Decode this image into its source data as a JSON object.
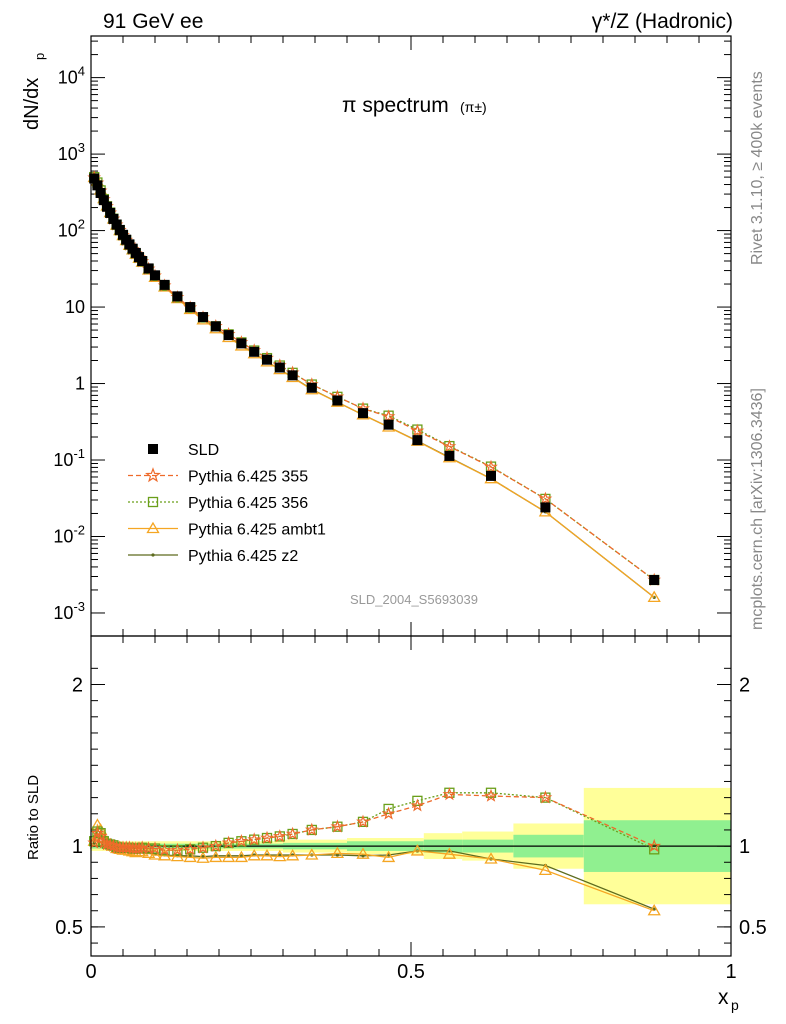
{
  "header": {
    "left_title": "91 GeV ee",
    "right_title": "γ*/Z (Hadronic)"
  },
  "side_text": {
    "rivet": "Rivet 3.1.10, ≥ 400k events",
    "mcplots": "mcplots.cern.ch [arXiv:1306.3436]"
  },
  "chart_data": [
    {
      "type": "line",
      "title": "π spectrum",
      "title_suffix": "(π±)",
      "ylabel": "dN/dx",
      "ylabel_sub": "p",
      "yscale": "log",
      "ylim": [
        0.0005,
        35000
      ],
      "xlim": [
        0,
        1
      ],
      "yticks": [
        "10^-3",
        "10^-2",
        "10^-1",
        "1",
        "10",
        "10^2",
        "10^3",
        "10^4"
      ],
      "watermark": "SLD_2004_S5693039",
      "legend_position": "bottom-left",
      "x": [
        0.005,
        0.01,
        0.015,
        0.02,
        0.025,
        0.03,
        0.035,
        0.04,
        0.045,
        0.05,
        0.055,
        0.06,
        0.065,
        0.07,
        0.075,
        0.08,
        0.09,
        0.1,
        0.115,
        0.135,
        0.155,
        0.175,
        0.195,
        0.215,
        0.235,
        0.255,
        0.275,
        0.295,
        0.315,
        0.345,
        0.385,
        0.425,
        0.465,
        0.51,
        0.56,
        0.625,
        0.71,
        0.88
      ],
      "series": [
        {
          "name": "SLD",
          "color": "#000000",
          "values": [
            480,
            390,
            310,
            250,
            205,
            170,
            142,
            120,
            102,
            88,
            76,
            66,
            58,
            51,
            45,
            40,
            32,
            26,
            19.5,
            13.8,
            10.0,
            7.4,
            5.6,
            4.3,
            3.35,
            2.6,
            2.05,
            1.62,
            1.28,
            0.88,
            0.6,
            0.41,
            0.29,
            0.182,
            0.113,
            0.062,
            0.024,
            0.0027
          ]
        },
        {
          "name": "Pythia 6.425 355",
          "color": "#ee6a2a",
          "values": [
            490,
            420,
            330,
            255,
            207,
            171,
            142,
            119,
            101,
            87,
            75,
            65,
            57,
            50,
            44.4,
            39.5,
            31.5,
            25.6,
            19.0,
            13.4,
            9.8,
            7.3,
            5.6,
            4.4,
            3.45,
            2.7,
            2.15,
            1.72,
            1.38,
            0.97,
            0.67,
            0.47,
            0.37,
            0.24,
            0.15,
            0.081,
            0.031,
            0.0027
          ]
        },
        {
          "name": "Pythia 6.425 356",
          "color": "#6a9f1a",
          "values": [
            500,
            425,
            335,
            258,
            208,
            172,
            143,
            119,
            101,
            87,
            75,
            65,
            57,
            50,
            44.4,
            39.5,
            31.5,
            25.6,
            19.0,
            13.4,
            9.8,
            7.3,
            5.6,
            4.4,
            3.45,
            2.7,
            2.15,
            1.72,
            1.38,
            0.97,
            0.67,
            0.47,
            0.38,
            0.25,
            0.152,
            0.082,
            0.031,
            0.0027
          ]
        },
        {
          "name": "Pythia 6.425 ambt1",
          "color": "#f5a623",
          "values": [
            495,
            440,
            340,
            262,
            210,
            172,
            142,
            118,
            100,
            86,
            74,
            64,
            56,
            49,
            43.5,
            38.5,
            30.5,
            24.5,
            18.3,
            12.9,
            9.3,
            6.8,
            5.2,
            4.0,
            3.1,
            2.45,
            1.92,
            1.52,
            1.2,
            0.83,
            0.57,
            0.39,
            0.27,
            0.176,
            0.107,
            0.057,
            0.021,
            0.0016
          ]
        },
        {
          "name": "Pythia 6.425 z2",
          "color": "#5d6b1e",
          "values": [
            490,
            430,
            335,
            259,
            209,
            171,
            141,
            118,
            100,
            86,
            74,
            64,
            56,
            49,
            43.6,
            38.6,
            30.6,
            24.7,
            18.4,
            13.0,
            9.4,
            6.9,
            5.3,
            4.05,
            3.15,
            2.46,
            1.93,
            1.53,
            1.21,
            0.84,
            0.57,
            0.39,
            0.27,
            0.177,
            0.108,
            0.057,
            0.021,
            0.0016
          ]
        }
      ]
    },
    {
      "type": "line",
      "ylabel": "Ratio to SLD",
      "xlabel": "x",
      "xlabel_sub": "p",
      "xlim": [
        0,
        1
      ],
      "ylim": [
        0.32,
        2.3
      ],
      "xticks": [
        "0",
        "0.5",
        "1"
      ],
      "yticks": [
        "0.5",
        "1",
        "2"
      ],
      "reference_line": 1,
      "uncertainty_bands": [
        {
          "x0": 0.0,
          "x1": 0.1,
          "inner": 0.015,
          "outer": 0.03
        },
        {
          "x0": 0.1,
          "x1": 0.3,
          "inner": 0.015,
          "outer": 0.03
        },
        {
          "x0": 0.3,
          "x1": 0.4,
          "inner": 0.02,
          "outer": 0.04
        },
        {
          "x0": 0.4,
          "x1": 0.52,
          "inner": 0.03,
          "outer": 0.05
        },
        {
          "x0": 0.52,
          "x1": 0.58,
          "inner": 0.04,
          "outer": 0.08
        },
        {
          "x0": 0.58,
          "x1": 0.66,
          "inner": 0.04,
          "outer": 0.09
        },
        {
          "x0": 0.66,
          "x1": 0.77,
          "inner": 0.07,
          "outer": 0.14
        },
        {
          "x0": 0.77,
          "x1": 1.0,
          "inner": 0.16,
          "outer": 0.36
        }
      ],
      "x": [
        0.005,
        0.01,
        0.015,
        0.02,
        0.025,
        0.03,
        0.035,
        0.04,
        0.045,
        0.05,
        0.055,
        0.06,
        0.065,
        0.07,
        0.075,
        0.08,
        0.09,
        0.1,
        0.115,
        0.135,
        0.155,
        0.175,
        0.195,
        0.215,
        0.235,
        0.255,
        0.275,
        0.295,
        0.315,
        0.345,
        0.385,
        0.425,
        0.465,
        0.51,
        0.56,
        0.625,
        0.71,
        0.88
      ],
      "series": [
        {
          "name": "Pythia 6.425 355",
          "color": "#ee6a2a",
          "values": [
            1.02,
            1.08,
            1.06,
            1.02,
            1.01,
            1.005,
            1.0,
            0.99,
            0.99,
            0.99,
            0.99,
            0.99,
            0.985,
            0.985,
            0.985,
            0.99,
            0.985,
            0.985,
            0.975,
            0.975,
            0.98,
            0.99,
            1.0,
            1.02,
            1.03,
            1.04,
            1.05,
            1.06,
            1.075,
            1.1,
            1.12,
            1.15,
            1.2,
            1.25,
            1.32,
            1.31,
            1.3,
            1.0
          ]
        },
        {
          "name": "Pythia 6.425 356",
          "color": "#6a9f1a",
          "values": [
            1.03,
            1.09,
            1.08,
            1.03,
            1.015,
            1.01,
            1.005,
            0.995,
            0.99,
            0.99,
            0.99,
            0.99,
            0.985,
            0.985,
            0.985,
            0.99,
            0.985,
            0.985,
            0.975,
            0.975,
            0.98,
            0.99,
            1.0,
            1.02,
            1.03,
            1.04,
            1.05,
            1.06,
            1.075,
            1.1,
            1.12,
            1.15,
            1.23,
            1.28,
            1.33,
            1.33,
            1.3,
            0.98
          ]
        },
        {
          "name": "Pythia 6.425 ambt1",
          "color": "#f5a623",
          "values": [
            1.03,
            1.13,
            1.1,
            1.05,
            1.025,
            1.01,
            1.0,
            0.985,
            0.98,
            0.975,
            0.975,
            0.97,
            0.965,
            0.96,
            0.965,
            0.965,
            0.955,
            0.945,
            0.94,
            0.935,
            0.93,
            0.925,
            0.93,
            0.93,
            0.93,
            0.94,
            0.94,
            0.935,
            0.94,
            0.945,
            0.955,
            0.95,
            0.93,
            0.97,
            0.95,
            0.92,
            0.85,
            0.6
          ]
        },
        {
          "name": "Pythia 6.425 z2",
          "color": "#5d6b1e",
          "values": [
            1.02,
            1.1,
            1.08,
            1.035,
            1.02,
            1.005,
            0.995,
            0.985,
            0.98,
            0.975,
            0.975,
            0.97,
            0.965,
            0.965,
            0.965,
            0.965,
            0.96,
            0.95,
            0.945,
            0.94,
            0.94,
            0.935,
            0.94,
            0.94,
            0.94,
            0.945,
            0.945,
            0.945,
            0.945,
            0.945,
            0.945,
            0.94,
            0.945,
            0.97,
            0.97,
            0.92,
            0.88,
            0.61
          ]
        }
      ]
    }
  ]
}
